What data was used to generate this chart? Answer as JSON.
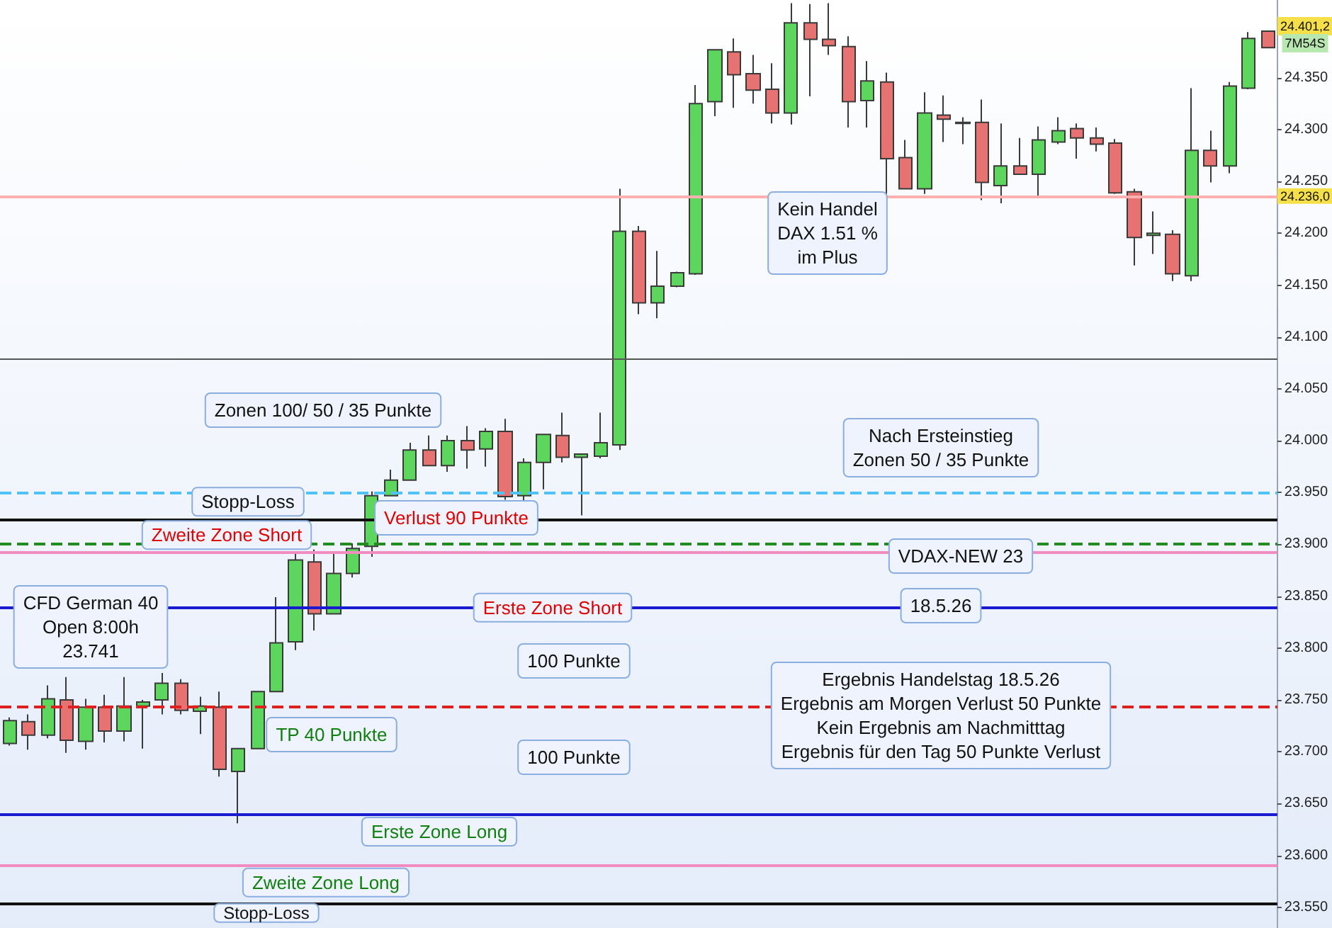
{
  "chart_data": {
    "type": "candlestick",
    "categories": [
      null,
      null,
      null,
      null,
      null,
      null,
      null,
      null,
      null,
      null,
      null,
      null,
      null,
      null,
      null,
      null,
      null,
      null,
      null,
      null,
      null,
      null,
      null,
      null,
      null,
      null,
      null,
      null,
      null,
      null,
      null,
      null,
      null,
      null,
      null,
      null,
      null,
      null,
      null,
      null,
      null,
      null,
      null,
      null,
      null,
      null,
      null,
      null,
      null,
      null,
      null,
      null,
      null,
      null,
      null,
      null,
      null,
      null,
      null,
      null,
      null,
      null,
      null,
      null,
      null,
      null,
      null
    ],
    "ohlc": [
      [
        23708,
        23733,
        23706,
        23730
      ],
      [
        23729,
        23736,
        23702,
        23716
      ],
      [
        23716,
        23764,
        23713,
        23751
      ],
      [
        23750,
        23772,
        23699,
        23711
      ],
      [
        23710,
        23751,
        23702,
        23743
      ],
      [
        23743,
        23755,
        23709,
        23720
      ],
      [
        23720,
        23772,
        23710,
        23744
      ],
      [
        23744,
        23750,
        23703,
        23748
      ],
      [
        23750,
        23776,
        23736,
        23766
      ],
      [
        23766,
        23770,
        23736,
        23740
      ],
      [
        23739,
        23753,
        23717,
        23744
      ],
      [
        23743,
        23758,
        23676,
        23683
      ],
      [
        23681,
        23703,
        23631,
        23703
      ],
      [
        23703,
        23758,
        23703,
        23758
      ],
      [
        23758,
        23849,
        23758,
        23805
      ],
      [
        23806,
        23891,
        23798,
        23885
      ],
      [
        23883,
        23895,
        23817,
        23833
      ],
      [
        23833,
        23893,
        23833,
        23872
      ],
      [
        23872,
        23901,
        23868,
        23896
      ],
      [
        23898,
        23951,
        23888,
        23947
      ],
      [
        23947,
        23972,
        23947,
        23962
      ],
      [
        23962,
        23998,
        23962,
        23991
      ],
      [
        23991,
        24005,
        23976,
        23976
      ],
      [
        23976,
        24005,
        23970,
        24000
      ],
      [
        24000,
        24014,
        23973,
        23991
      ],
      [
        23992,
        24012,
        23975,
        24009
      ],
      [
        24009,
        24021,
        23943,
        23946
      ],
      [
        23947,
        23983,
        23942,
        23979
      ],
      [
        23979,
        24006,
        23953,
        24006
      ],
      [
        24005,
        24027,
        23979,
        23984
      ],
      [
        23984,
        23987,
        23928,
        23987
      ],
      [
        23985,
        24027,
        23983,
        23998
      ],
      [
        23996,
        24243,
        23991,
        24202
      ],
      [
        24202,
        24207,
        24122,
        24133
      ],
      [
        24133,
        24183,
        24118,
        24149
      ],
      [
        24149,
        24163,
        24148,
        24162
      ],
      [
        24161,
        24343,
        24160,
        24325
      ],
      [
        24327,
        24377,
        24313,
        24377
      ],
      [
        24375,
        24388,
        24321,
        24353
      ],
      [
        24354,
        24372,
        24325,
        24338
      ],
      [
        24339,
        24364,
        24306,
        24316
      ],
      [
        24316,
        24422,
        24305,
        24403
      ],
      [
        24403,
        24421,
        24332,
        24387
      ],
      [
        24387,
        24422,
        24372,
        24381
      ],
      [
        24380,
        24390,
        24302,
        24327
      ],
      [
        24328,
        24366,
        24302,
        24347
      ],
      [
        24346,
        24355,
        24238,
        24272
      ],
      [
        24273,
        24290,
        24243,
        24243
      ],
      [
        24243,
        24336,
        24238,
        24316
      ],
      [
        24314,
        24333,
        24288,
        24310
      ],
      [
        24307,
        24312,
        24286,
        24306
      ],
      [
        24307,
        24329,
        24232,
        24249
      ],
      [
        24246,
        24306,
        24229,
        24265
      ],
      [
        24265,
        24292,
        24257,
        24257
      ],
      [
        24257,
        24303,
        24235,
        24290
      ],
      [
        24288,
        24312,
        24286,
        24299
      ],
      [
        24301,
        24306,
        24272,
        24292
      ],
      [
        24292,
        24302,
        24279,
        24286
      ],
      [
        24287,
        24291,
        24238,
        24239
      ],
      [
        24240,
        24243,
        24169,
        24196
      ],
      [
        24198,
        24221,
        24180,
        24200
      ],
      [
        24199,
        24203,
        24154,
        24161
      ],
      [
        24159,
        24340,
        24154,
        24280
      ],
      [
        24280,
        24299,
        24249,
        24265
      ],
      [
        24265,
        24346,
        24258,
        24342
      ],
      [
        24340,
        24394,
        24339,
        24388
      ],
      [
        24395,
        24395,
        24379,
        24379
      ]
    ],
    "colors": [
      "#5cd65c",
      "#e67272",
      "#5cd65c",
      "#e67272",
      "#5cd65c",
      "#e67272",
      "#5cd65c",
      "#5cd65c",
      "#5cd65c",
      "#e67272",
      "#5cd65c",
      "#e67272",
      "#5cd65c",
      "#5cd65c",
      "#5cd65c",
      "#5cd65c",
      "#e67272",
      "#5cd65c",
      "#5cd65c",
      "#5cd65c",
      "#5cd65c",
      "#5cd65c",
      "#e67272",
      "#5cd65c",
      "#e67272",
      "#5cd65c",
      "#e67272",
      "#5cd65c",
      "#5cd65c",
      "#e67272",
      "#5cd65c",
      "#5cd65c",
      "#5cd65c",
      "#e67272",
      "#5cd65c",
      "#5cd65c",
      "#5cd65c",
      "#5cd65c",
      "#e67272",
      "#e67272",
      "#e67272",
      "#5cd65c",
      "#e67272",
      "#e67272",
      "#e67272",
      "#5cd65c",
      "#e67272",
      "#e67272",
      "#5cd65c",
      "#e67272",
      "#e67272",
      "#e67272",
      "#5cd65c",
      "#e67272",
      "#5cd65c",
      "#5cd65c",
      "#e67272",
      "#e67272",
      "#e67272",
      "#e67272",
      "#5cd65c",
      "#e67272",
      "#5cd65c",
      "#e67272",
      "#5cd65c",
      "#5cd65c",
      "#e67272"
    ],
    "ylim": [
      23530,
      24425
    ],
    "yticks": [
      {
        "value": 23550,
        "label": "23.550"
      },
      {
        "value": 23600,
        "label": "23.600"
      },
      {
        "value": 23650,
        "label": "23.650"
      },
      {
        "value": 23700,
        "label": "23.700"
      },
      {
        "value": 23750,
        "label": "23.750"
      },
      {
        "value": 23800,
        "label": "23.800"
      },
      {
        "value": 23850,
        "label": "23.850"
      },
      {
        "value": 23900,
        "label": "23.900"
      },
      {
        "value": 23950,
        "label": "23.950"
      },
      {
        "value": 24000,
        "label": "24.000"
      },
      {
        "value": 24050,
        "label": "24.050"
      },
      {
        "value": 24100,
        "label": "24.100"
      },
      {
        "value": 24150,
        "label": "24.150"
      },
      {
        "value": 24200,
        "label": "24.200"
      },
      {
        "value": 24250,
        "label": "24.250"
      },
      {
        "value": 24300,
        "label": "24.300"
      },
      {
        "value": 24350,
        "label": "24.350"
      }
    ],
    "tick_labels": "y",
    "ref_lines": [
      {
        "axis": "y",
        "value": 23950,
        "color": "#4fc3f7",
        "line_style": "dashed"
      },
      {
        "axis": "y",
        "value": 23900,
        "color": "#228b22",
        "line_style": "dashed"
      },
      {
        "axis": "y",
        "value": 24079,
        "color": "#555555",
        "line_style": "solid"
      },
      {
        "axis": "y",
        "value": 23924,
        "label": "Stopp-Loss",
        "color": "#111111",
        "line_style": "solid"
      },
      {
        "axis": "y",
        "value": 23892,
        "label": "Zweite Zone Short",
        "color": "#f08cc0",
        "line_style": "solid"
      },
      {
        "axis": "y",
        "value": 23839,
        "label": "Erste Zone Short",
        "color": "#1a1ad0",
        "line_style": "solid"
      },
      {
        "axis": "y",
        "value": 23743,
        "color": "#e02020",
        "line_style": "dashed"
      },
      {
        "axis": "y",
        "value": 23640,
        "label": "Erste Zone Long",
        "color": "#1a1ad0",
        "line_style": "solid"
      },
      {
        "axis": "y",
        "value": 23591,
        "label": "Zweite Zone Long",
        "color": "#f08cc0",
        "line_style": "solid"
      },
      {
        "axis": "y",
        "value": 23554,
        "label": "Stopp-Loss",
        "color": "#111111",
        "line_style": "solid"
      },
      {
        "axis": "y",
        "value": 24236,
        "label": "24.236,0",
        "color": "#ffb0b0",
        "line_style": "solid"
      }
    ],
    "annotations": [
      "CFD German 40\nOpen 8:00h\n23.741",
      "Zonen 100/ 50 / 35 Punkte",
      "Verlust 90 Punkte",
      "TP 40 Punkte",
      "100 Punkte",
      "100 Punkte",
      "Kein Handel\nDAX 1.51 %\nim Plus",
      "Nach Ersteinstieg\nZonen 50 / 35 Punkte",
      "VDAX-NEW 23",
      "18.5.26",
      "Ergebnis Handelstag 18.5.26\nErgebnis am Morgen Verlust 50 Punkte\nKein Ergebnis am Nachmitttag\nErgebnis für den Tag 50 Punkte Verlust",
      "24.401,2",
      "7M54S"
    ]
  }
}
